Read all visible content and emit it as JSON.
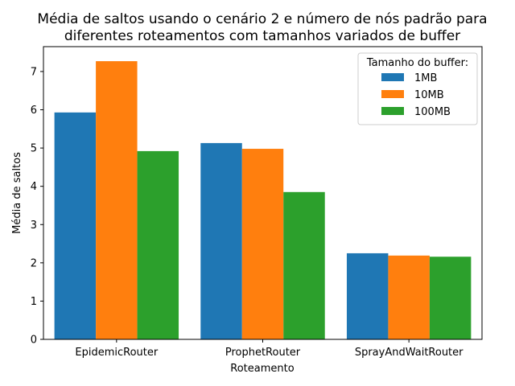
{
  "chart_data": {
    "type": "bar",
    "title": [
      "Média de saltos usando o cenário 2 e número de nós padrão para",
      "diferentes roteamentos com tamanhos variados de buffer"
    ],
    "xlabel": "Roteamento",
    "ylabel": "Média de saltos",
    "categories": [
      "EpidemicRouter",
      "ProphetRouter",
      "SprayAndWaitRouter"
    ],
    "yticks": [
      "0",
      "1",
      "2",
      "3",
      "4",
      "5",
      "6",
      "7"
    ],
    "ylim": [
      0,
      7.65
    ],
    "grid": false,
    "legend_title": "Tamanho do buffer:",
    "legend_position": "top-right",
    "series": [
      {
        "name": "1MB",
        "color": "#1f77b4",
        "values": [
          5.93,
          5.13,
          2.25
        ]
      },
      {
        "name": "10MB",
        "color": "#ff7f0e",
        "values": [
          7.27,
          4.98,
          2.19
        ]
      },
      {
        "name": "100MB",
        "color": "#2ca02c",
        "values": [
          4.92,
          3.85,
          2.16
        ]
      }
    ]
  }
}
